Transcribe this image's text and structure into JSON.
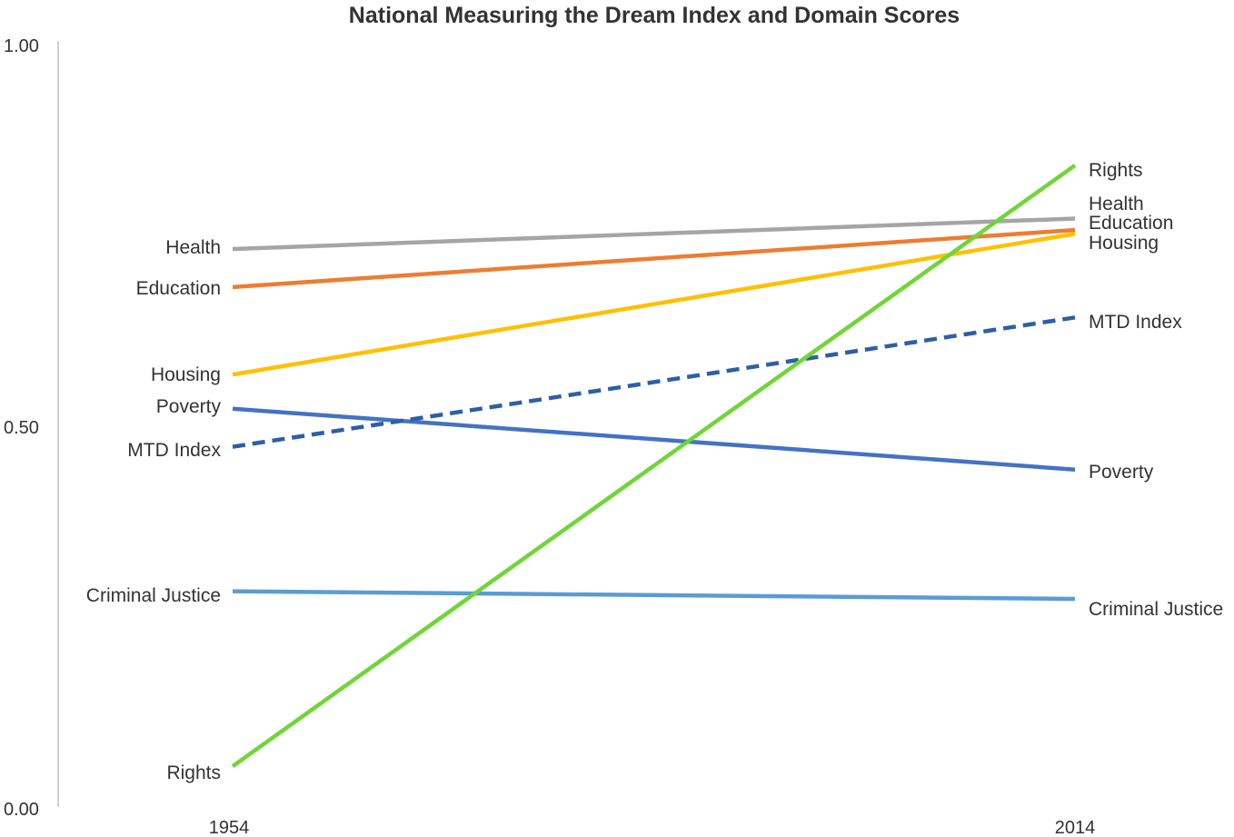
{
  "chart_data": {
    "type": "line",
    "title": "National Measuring the Dream Index and Domain Scores",
    "categories": [
      "1954",
      "2014"
    ],
    "y_ticks": [
      "1.00",
      "0.50",
      "0.00"
    ],
    "ylim": [
      0,
      1
    ],
    "grid": false,
    "series": [
      {
        "name": "Health",
        "values": [
          0.73,
          0.77
        ],
        "color": "#a5a5a5",
        "dashed": false
      },
      {
        "name": "Education",
        "values": [
          0.68,
          0.755
        ],
        "color": "#ed7d31",
        "dashed": false
      },
      {
        "name": "Housing",
        "values": [
          0.565,
          0.75
        ],
        "color": "#ffc000",
        "dashed": false
      },
      {
        "name": "Poverty",
        "values": [
          0.52,
          0.44
        ],
        "color": "#4472c4",
        "dashed": false
      },
      {
        "name": "MTD Index",
        "values": [
          0.47,
          0.64
        ],
        "color": "#2e5fa3",
        "dashed": true
      },
      {
        "name": "Criminal Justice",
        "values": [
          0.28,
          0.27
        ],
        "color": "#5b9bd5",
        "dashed": false
      },
      {
        "name": "Rights",
        "values": [
          0.05,
          0.84
        ],
        "color": "#70d637",
        "dashed": false
      }
    ]
  }
}
